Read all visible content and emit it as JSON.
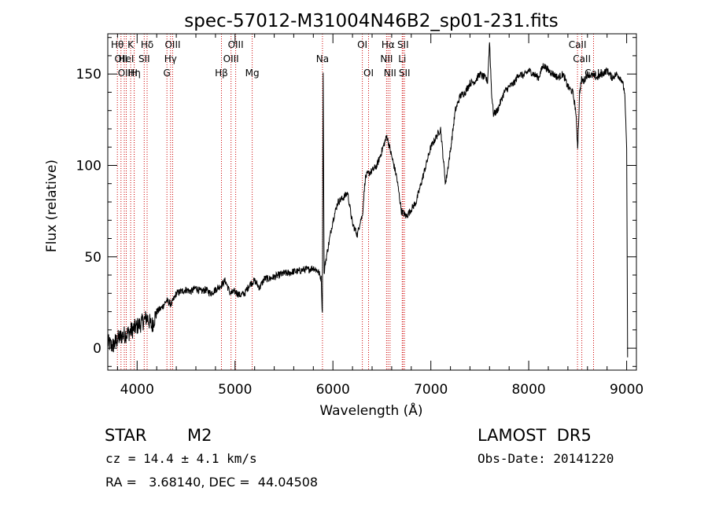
{
  "chart_data": {
    "type": "line",
    "title": "spec-57012-M31004N46B2_sp01-231.fits",
    "xlabel": "Wavelength (Å)",
    "ylabel": "Flux (relative)",
    "xlim": [
      3700,
      9100
    ],
    "ylim": [
      -12,
      172
    ],
    "x_ticks": [
      4000,
      5000,
      6000,
      7000,
      8000,
      9000
    ],
    "y_ticks": [
      0,
      50,
      100,
      150
    ],
    "grid": false,
    "series": [
      {
        "x": [
          3700,
          3750,
          3800,
          3850,
          3900,
          3950,
          4000,
          4050,
          4100,
          4150,
          4200,
          4250,
          4300,
          4350,
          4400,
          4450,
          4500,
          4550,
          4600,
          4650,
          4700,
          4750,
          4800,
          4850,
          4900,
          4950,
          5000,
          5050,
          5100,
          5150,
          5200,
          5250,
          5300,
          5350,
          5400,
          5450,
          5500,
          5550,
          5600,
          5650,
          5700,
          5750,
          5800,
          5850,
          5880,
          5892,
          5900,
          5910,
          5920,
          5950,
          6000,
          6050,
          6100,
          6150,
          6200,
          6250,
          6280,
          6300,
          6330,
          6350,
          6400,
          6450,
          6500,
          6550,
          6570,
          6600,
          6650,
          6700,
          6750,
          6800,
          6850,
          6900,
          6950,
          7000,
          7050,
          7100,
          7150,
          7200,
          7250,
          7300,
          7350,
          7400,
          7450,
          7500,
          7550,
          7580,
          7600,
          7620,
          7640,
          7680,
          7700,
          7750,
          7800,
          7850,
          7900,
          7950,
          8000,
          8050,
          8100,
          8150,
          8200,
          8250,
          8300,
          8350,
          8400,
          8450,
          8480,
          8500,
          8520,
          8540,
          8560,
          8600,
          8650,
          8700,
          8750,
          8800,
          8850,
          8900,
          8950,
          8980,
          9000,
          9010
        ],
        "y": [
          3,
          1,
          5,
          7,
          8,
          10,
          12,
          14,
          17,
          12,
          20,
          22,
          26,
          24,
          30,
          31,
          32,
          31,
          33,
          31,
          32,
          30,
          32,
          34,
          37,
          30,
          31,
          29,
          30,
          35,
          37,
          33,
          38,
          38,
          39,
          40,
          41,
          41,
          42,
          42,
          43,
          43,
          44,
          42,
          38,
          18,
          150,
          40,
          46,
          55,
          70,
          80,
          82,
          85,
          68,
          62,
          70,
          72,
          93,
          95,
          97,
          100,
          108,
          116,
          112,
          105,
          94,
          75,
          72,
          76,
          80,
          90,
          100,
          110,
          115,
          120,
          90,
          108,
          130,
          138,
          140,
          145,
          146,
          150,
          148,
          146,
          168,
          140,
          128,
          130,
          133,
          140,
          143,
          145,
          150,
          149,
          152,
          150,
          148,
          155,
          152,
          150,
          148,
          150,
          143,
          140,
          130,
          110,
          140,
          147,
          146,
          150,
          149,
          148,
          150,
          152,
          148,
          150,
          147,
          140,
          110,
          -5
        ]
      }
    ],
    "lines": [
      {
        "wl": 3798,
        "row": 0,
        "label": "Hθ"
      },
      {
        "wl": 3835,
        "row": 1,
        "label": "OII"
      },
      {
        "wl": 3869,
        "row": 2,
        "label": "OII"
      },
      {
        "wl": 3889,
        "row": 1,
        "label": "HeI"
      },
      {
        "wl": 3934,
        "row": 0,
        "label": "K"
      },
      {
        "wl": 3970,
        "row": 2,
        "label": "Hη"
      },
      {
        "wl": 3969,
        "row": 2,
        "label": "H"
      },
      {
        "wl": 4072,
        "row": 1,
        "label": "SII"
      },
      {
        "wl": 4102,
        "row": 0,
        "label": "Hδ"
      },
      {
        "wl": 4304,
        "row": 2,
        "label": "G"
      },
      {
        "wl": 4341,
        "row": 1,
        "label": "Hγ"
      },
      {
        "wl": 4363,
        "row": 0,
        "label": "OIII"
      },
      {
        "wl": 4861,
        "row": 2,
        "label": "Hβ"
      },
      {
        "wl": 4959,
        "row": 1,
        "label": "OIII"
      },
      {
        "wl": 5007,
        "row": 0,
        "label": "OIII"
      },
      {
        "wl": 5175,
        "row": 2,
        "label": "Mg"
      },
      {
        "wl": 5893,
        "row": 1,
        "label": "Na"
      },
      {
        "wl": 6300,
        "row": 0,
        "label": "OI"
      },
      {
        "wl": 6364,
        "row": 2,
        "label": "OI"
      },
      {
        "wl": 6548,
        "row": 1,
        "label": "NII"
      },
      {
        "wl": 6563,
        "row": 0,
        "label": "Hα"
      },
      {
        "wl": 6583,
        "row": 2,
        "label": "NII"
      },
      {
        "wl": 6708,
        "row": 1,
        "label": "Li"
      },
      {
        "wl": 6716,
        "row": 0,
        "label": "SII"
      },
      {
        "wl": 6731,
        "row": 2,
        "label": "SII"
      },
      {
        "wl": 8498,
        "row": 0,
        "label": "CaII"
      },
      {
        "wl": 8542,
        "row": 1,
        "label": "CaII"
      },
      {
        "wl": 8662,
        "row": 2,
        "label": "CaII"
      }
    ]
  },
  "info": {
    "object_class": "STAR",
    "subclass": "M2",
    "survey": "LAMOST  DR5",
    "redshift": "cz = 14.4 ± 4.1 km/s",
    "obs_date": "Obs-Date: 20141220",
    "coords": "RA =   3.68140, DEC =  44.04508"
  }
}
